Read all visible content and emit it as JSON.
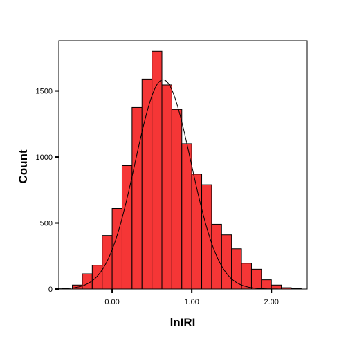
{
  "chart_data": {
    "type": "bar",
    "subtype": "histogram",
    "title": "",
    "xlabel": "lnIRI",
    "ylabel": "Count",
    "xlim": [
      -0.67,
      2.45
    ],
    "ylim": [
      0,
      1880
    ],
    "x_ticks": [
      {
        "value": 0.0,
        "label": "0.00"
      },
      {
        "value": 1.0,
        "label": "1.00"
      },
      {
        "value": 2.0,
        "label": "2.00"
      }
    ],
    "y_ticks": [
      {
        "value": 0,
        "label": "0"
      },
      {
        "value": 500,
        "label": "500"
      },
      {
        "value": 1000,
        "label": "1000"
      },
      {
        "value": 1500,
        "label": "1500"
      }
    ],
    "bin_width": 0.125,
    "bin_starts": [
      -0.5,
      -0.375,
      -0.25,
      -0.125,
      0.0,
      0.125,
      0.25,
      0.375,
      0.5,
      0.625,
      0.75,
      0.875,
      1.0,
      1.125,
      1.25,
      1.375,
      1.5,
      1.625,
      1.75,
      1.875,
      2.0,
      2.125,
      2.25
    ],
    "values": [
      30,
      115,
      180,
      405,
      610,
      935,
      1375,
      1590,
      1800,
      1545,
      1360,
      1100,
      870,
      790,
      490,
      410,
      305,
      195,
      150,
      70,
      30,
      10,
      5
    ],
    "normal_curve": {
      "mean": 0.64,
      "sd": 0.35,
      "peak": 1585
    },
    "colors": {
      "bar_fill": "#f53636",
      "bar_stroke": "#000000",
      "curve": "#000000",
      "plot_border": "#000000"
    }
  }
}
